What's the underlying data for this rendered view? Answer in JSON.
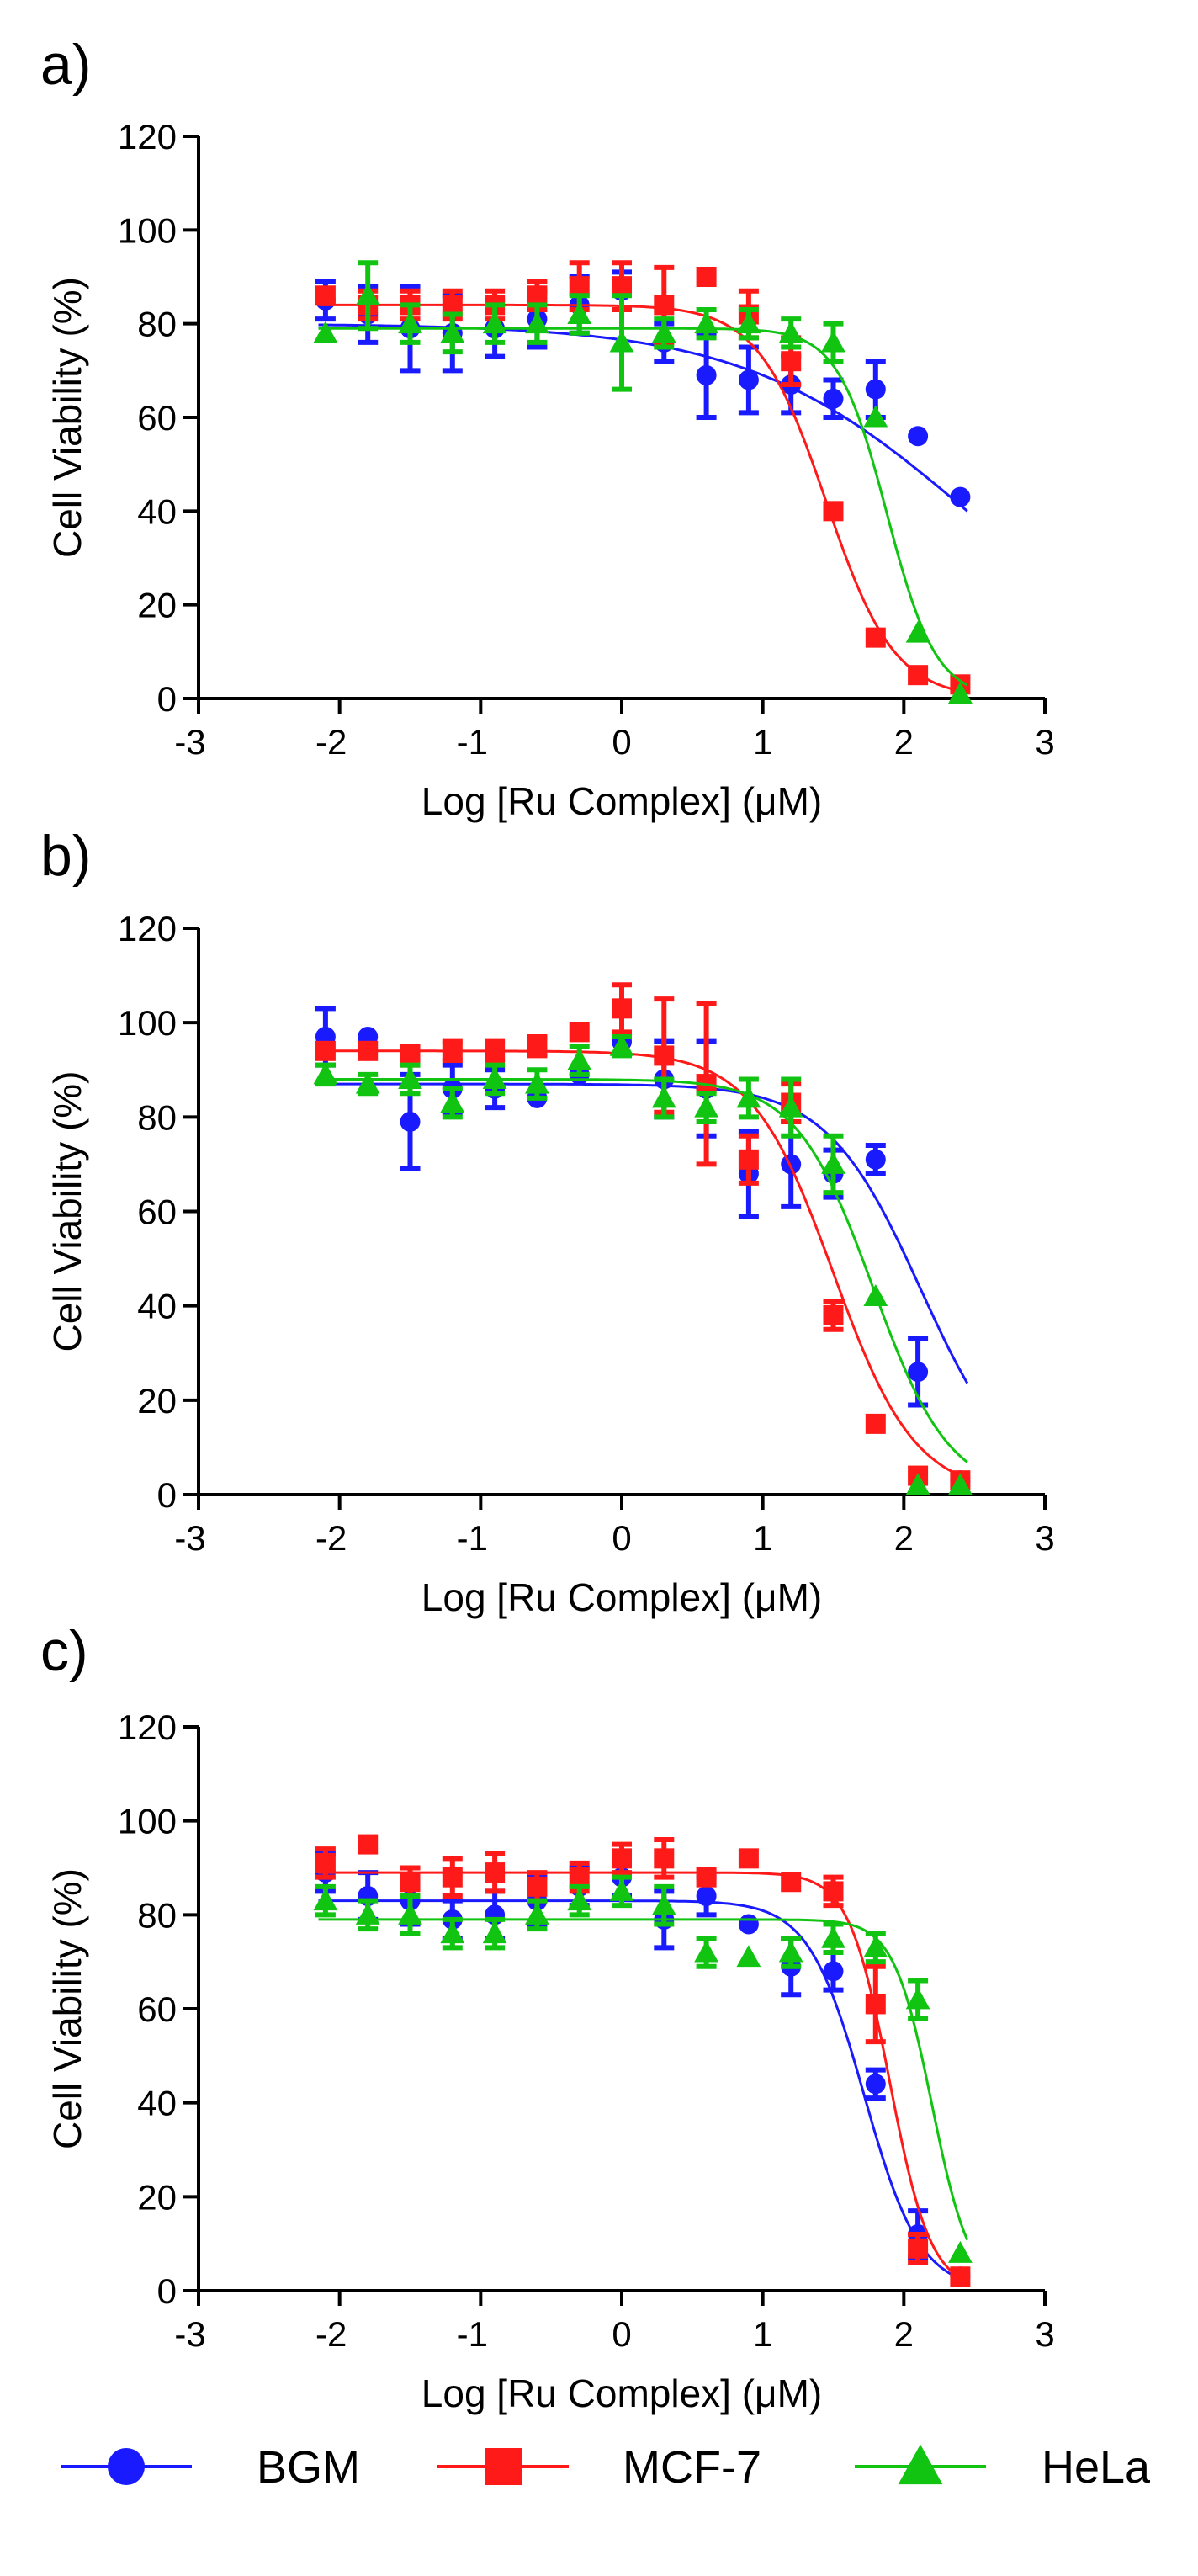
{
  "colors": {
    "BGM": "#1a1aff",
    "MCF-7": "#ff1a1a",
    "HeLa": "#12c412",
    "axis": "#000000"
  },
  "legend": [
    {
      "name": "BGM",
      "marker": "circle",
      "color": "#1a1aff"
    },
    {
      "name": "MCF-7",
      "marker": "square",
      "color": "#ff1a1a"
    },
    {
      "name": "HeLa",
      "marker": "triangle",
      "color": "#12c412"
    }
  ],
  "chart_data": [
    {
      "type": "scatter",
      "panel": "a)",
      "xlabel": "Log [Ru Complex] (μM)",
      "ylabel": "Cell Viability (%)",
      "xlim": [
        -3,
        3
      ],
      "ylim": [
        0,
        120
      ],
      "xticks": [
        -3,
        -2,
        -1,
        0,
        1,
        2,
        3
      ],
      "yticks": [
        0,
        20,
        40,
        60,
        80,
        100,
        120
      ],
      "grid": false,
      "series": [
        {
          "name": "BGM",
          "x": [
            -2.1,
            -1.8,
            -1.5,
            -1.2,
            -0.9,
            -0.6,
            -0.3,
            0.0,
            0.3,
            0.6,
            0.9,
            1.2,
            1.5,
            1.8,
            2.1,
            2.4
          ],
          "y": [
            85,
            82,
            79,
            78,
            79,
            81,
            84,
            87,
            76,
            69,
            68,
            67,
            64,
            66,
            56,
            43
          ],
          "err": [
            4,
            6,
            9,
            8,
            6,
            6,
            6,
            4,
            4,
            9,
            7,
            6,
            4,
            6,
            0,
            0
          ],
          "fit": {
            "top": 80,
            "bottom": 0,
            "logec50": 2.45,
            "hill": 0.55
          }
        },
        {
          "name": "MCF-7",
          "x": [
            -2.1,
            -1.8,
            -1.5,
            -1.2,
            -0.9,
            -0.6,
            -0.3,
            0.0,
            0.3,
            0.6,
            0.9,
            1.2,
            1.5,
            1.8,
            2.1,
            2.4
          ],
          "y": [
            86,
            84,
            84,
            84,
            84,
            86,
            88,
            88,
            84,
            90,
            82,
            72,
            40,
            13,
            5,
            3
          ],
          "err": [
            0,
            3,
            3,
            3,
            3,
            3,
            5,
            5,
            8,
            0,
            5,
            5,
            0,
            0,
            0,
            0
          ],
          "fit": {
            "top": 84,
            "bottom": 0,
            "logec50": 1.45,
            "hill": 1.8
          }
        },
        {
          "name": "HeLa",
          "x": [
            -2.1,
            -1.8,
            -1.5,
            -1.2,
            -0.9,
            -0.6,
            -0.3,
            0.0,
            0.3,
            0.6,
            0.9,
            1.2,
            1.5,
            1.8,
            2.1,
            2.4
          ],
          "y": [
            78,
            86,
            80,
            78,
            80,
            80,
            82,
            76,
            78,
            80,
            80,
            78,
            76,
            60,
            14,
            1
          ],
          "err": [
            0,
            7,
            4,
            4,
            4,
            4,
            4,
            10,
            3,
            3,
            3,
            3,
            4,
            0,
            0,
            0
          ],
          "fit": {
            "top": 79,
            "bottom": 0,
            "logec50": 1.88,
            "hill": 2.5
          }
        }
      ]
    },
    {
      "type": "scatter",
      "panel": "b)",
      "xlabel": "Log [Ru Complex] (μM)",
      "ylabel": "Cell Viability (%)",
      "xlim": [
        -3,
        3
      ],
      "ylim": [
        0,
        120
      ],
      "xticks": [
        -3,
        -2,
        -1,
        0,
        1,
        2,
        3
      ],
      "yticks": [
        0,
        20,
        40,
        60,
        80,
        100,
        120
      ],
      "grid": false,
      "series": [
        {
          "name": "BGM",
          "x": [
            -2.1,
            -1.8,
            -1.5,
            -1.2,
            -0.9,
            -0.6,
            -0.3,
            0.0,
            0.3,
            0.6,
            0.9,
            1.2,
            1.5,
            1.8,
            2.1,
            2.4
          ],
          "y": [
            97,
            97,
            79,
            86,
            86,
            84,
            89,
            96,
            88,
            86,
            68,
            70,
            68,
            71,
            26,
            3
          ],
          "err": [
            6,
            0,
            10,
            5,
            4,
            0,
            0,
            0,
            8,
            10,
            9,
            9,
            5,
            3,
            7,
            0
          ],
          "fit": {
            "top": 87,
            "bottom": 0,
            "logec50": 2.12,
            "hill": 1.3
          }
        },
        {
          "name": "MCF-7",
          "x": [
            -2.1,
            -1.8,
            -1.5,
            -1.2,
            -0.9,
            -0.6,
            -0.3,
            0.0,
            0.3,
            0.6,
            0.9,
            1.2,
            1.5,
            1.8,
            2.1,
            2.4
          ],
          "y": [
            94,
            94,
            93,
            94,
            94,
            95,
            98,
            103,
            93,
            87,
            71,
            83,
            38,
            15,
            4,
            3
          ],
          "err": [
            0,
            0,
            2,
            2,
            2,
            2,
            0,
            5,
            12,
            17,
            5,
            4,
            3,
            0,
            0,
            0
          ],
          "fit": {
            "top": 94,
            "bottom": 0,
            "logec50": 1.5,
            "hill": 1.5
          }
        },
        {
          "name": "HeLa",
          "x": [
            -2.1,
            -1.8,
            -1.5,
            -1.2,
            -0.9,
            -0.6,
            -0.3,
            0.0,
            0.3,
            0.6,
            0.9,
            1.2,
            1.5,
            1.8,
            2.1,
            2.4
          ],
          "y": [
            89,
            87,
            88,
            83,
            88,
            87,
            92,
            95,
            84,
            82,
            84,
            82,
            70,
            42,
            2,
            2
          ],
          "err": [
            2,
            2,
            3,
            3,
            3,
            3,
            3,
            2,
            4,
            3,
            4,
            6,
            6,
            0,
            0,
            0
          ],
          "fit": {
            "top": 88,
            "bottom": 0,
            "logec50": 1.78,
            "hill": 1.6
          }
        }
      ]
    },
    {
      "type": "scatter",
      "panel": "c)",
      "xlabel": "Log [Ru Complex] (μM)",
      "ylabel": "Cell Viability (%)",
      "xlim": [
        -3,
        3
      ],
      "ylim": [
        0,
        120
      ],
      "xticks": [
        -3,
        -2,
        -1,
        0,
        1,
        2,
        3
      ],
      "yticks": [
        0,
        20,
        40,
        60,
        80,
        100,
        120
      ],
      "grid": false,
      "series": [
        {
          "name": "BGM",
          "x": [
            -2.1,
            -1.8,
            -1.5,
            -1.2,
            -0.9,
            -0.6,
            -0.3,
            0.0,
            0.3,
            0.6,
            0.9,
            1.2,
            1.5,
            1.8,
            2.1,
            2.4
          ],
          "y": [
            89,
            84,
            83,
            79,
            80,
            83,
            86,
            88,
            79,
            84,
            78,
            69,
            68,
            44,
            12,
            3
          ],
          "err": [
            4,
            5,
            5,
            4,
            5,
            5,
            4,
            4,
            6,
            4,
            0,
            6,
            4,
            3,
            5,
            0
          ],
          "fit": {
            "top": 83,
            "bottom": 0,
            "logec50": 1.72,
            "hill": 2.2
          }
        },
        {
          "name": "MCF-7",
          "x": [
            -2.1,
            -1.8,
            -1.5,
            -1.2,
            -0.9,
            -0.6,
            -0.3,
            0.0,
            0.3,
            0.6,
            0.9,
            1.2,
            1.5,
            1.8,
            2.1,
            2.4
          ],
          "y": [
            91,
            95,
            87,
            88,
            89,
            86,
            88,
            92,
            92,
            88,
            92,
            87,
            85,
            61,
            9,
            3
          ],
          "err": [
            3,
            0,
            3,
            4,
            4,
            3,
            3,
            3,
            4,
            0,
            0,
            0,
            3,
            8,
            3,
            0
          ],
          "fit": {
            "top": 89,
            "bottom": 0,
            "logec50": 1.9,
            "hill": 3.0
          }
        },
        {
          "name": "HeLa",
          "x": [
            -2.1,
            -1.8,
            -1.5,
            -1.2,
            -0.9,
            -0.6,
            -0.3,
            0.0,
            0.3,
            0.6,
            0.9,
            1.2,
            1.5,
            1.8,
            2.1,
            2.4
          ],
          "y": [
            83,
            80,
            80,
            76,
            76,
            80,
            83,
            85,
            82,
            72,
            71,
            72,
            75,
            73,
            62,
            8
          ],
          "err": [
            3,
            3,
            4,
            3,
            3,
            3,
            3,
            3,
            4,
            3,
            0,
            3,
            3,
            3,
            4,
            0
          ],
          "fit": {
            "top": 79,
            "bottom": 0,
            "logec50": 2.2,
            "hill": 3.2
          }
        }
      ]
    }
  ]
}
